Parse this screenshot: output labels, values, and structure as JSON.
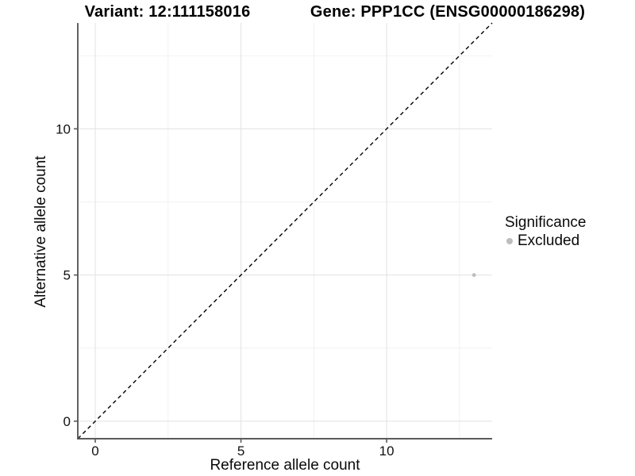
{
  "chart_data": {
    "type": "scatter",
    "title_left": "Variant: 12:111158016",
    "title_right": "Gene: PPP1CC (ENSG00000186298)",
    "xlabel": "Reference allele count",
    "ylabel": "Alternative allele count",
    "xlim": [
      -0.6,
      13.62
    ],
    "ylim": [
      -0.6,
      13.62
    ],
    "x_ticks": [
      0,
      5,
      10
    ],
    "y_ticks": [
      0,
      5,
      10
    ],
    "x_minor_ticks": [
      2.5,
      7.5,
      12.5
    ],
    "y_minor_ticks": [
      2.5,
      7.5,
      12.5
    ],
    "grid": true,
    "legend_position": "right",
    "reference_line": {
      "type": "identity",
      "style": "dashed",
      "color": "#000000"
    },
    "series": [
      {
        "name": "Excluded",
        "points": [
          {
            "x": 13,
            "y": 5
          }
        ],
        "color": "#bdbdbd"
      }
    ],
    "legend": {
      "title": "Significance",
      "entries": [
        {
          "label": "Excluded",
          "color": "#bdbdbd"
        }
      ]
    },
    "colors": {
      "axis_line": "#5a5a5a",
      "tick_label": "#111111",
      "grid_major": "#e4e4e4",
      "grid_minor": "#efefef",
      "background": "#ffffff"
    }
  }
}
